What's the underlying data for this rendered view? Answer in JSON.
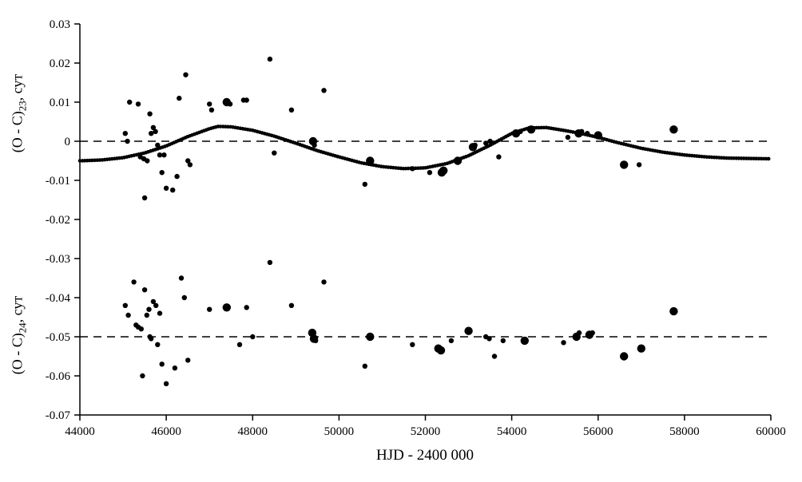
{
  "page": {
    "background": "#ffffff"
  },
  "chart_data": {
    "type": "scatter",
    "title": "",
    "xlabel": "HJD - 2400 000",
    "xlim": [
      44000,
      60000
    ],
    "ylim": [
      -0.07,
      0.03
    ],
    "grid": false,
    "point_color": "#000000",
    "axis_color": "#000000",
    "x_ticks": [
      44000,
      46000,
      48000,
      50000,
      52000,
      54000,
      56000,
      58000,
      60000
    ],
    "x_tick_labels": [
      "44000",
      "46000",
      "48000",
      "50000",
      "52000",
      "54000",
      "56000",
      "58000",
      "60000"
    ],
    "y_ticks": [
      0.03,
      0.02,
      0.01,
      0,
      -0.01,
      -0.02,
      -0.03,
      -0.04,
      -0.05,
      -0.06,
      -0.07
    ],
    "y_tick_labels": [
      "0.03",
      "0.02",
      "0.01",
      "0",
      "-0.01",
      "-0.02",
      "-0.03",
      "-0.04",
      "-0.05",
      "-0.06",
      "-0.07"
    ],
    "ylabel_top": {
      "prefix": "(O - C)",
      "sub": "23",
      "suffix": ", сут"
    },
    "ylabel_bottom": {
      "prefix": "(O - C)",
      "sub": "24",
      "suffix": ", сут"
    },
    "series": [
      {
        "name": "(O - C)23",
        "baseline": 0,
        "baseline_style": "dashed",
        "points": [
          [
            45050,
            0.002,
            "s"
          ],
          [
            45100,
            0.0,
            "s"
          ],
          [
            45150,
            0.01,
            "s"
          ],
          [
            45350,
            0.0095,
            "s"
          ],
          [
            45400,
            -0.004,
            "s"
          ],
          [
            45480,
            -0.0045,
            "s"
          ],
          [
            45500,
            -0.0145,
            "s"
          ],
          [
            45560,
            -0.005,
            "s"
          ],
          [
            45620,
            0.007,
            "s"
          ],
          [
            45650,
            0.002,
            "s"
          ],
          [
            45700,
            0.0035,
            "s"
          ],
          [
            45750,
            0.0025,
            "s"
          ],
          [
            45800,
            -0.001,
            "s"
          ],
          [
            45850,
            -0.0035,
            "s"
          ],
          [
            45900,
            -0.008,
            "s"
          ],
          [
            45950,
            -0.0035,
            "s"
          ],
          [
            46000,
            -0.012,
            "s"
          ],
          [
            46150,
            -0.0125,
            "s"
          ],
          [
            46250,
            -0.009,
            "s"
          ],
          [
            46300,
            0.011,
            "s"
          ],
          [
            46450,
            0.017,
            "s"
          ],
          [
            46500,
            -0.005,
            "s"
          ],
          [
            46550,
            -0.006,
            "s"
          ],
          [
            47000,
            0.0095,
            "s"
          ],
          [
            47050,
            0.008,
            "s"
          ],
          [
            47400,
            0.01,
            "l"
          ],
          [
            47480,
            0.0095,
            "s"
          ],
          [
            47790,
            0.0105,
            "s"
          ],
          [
            47860,
            0.0105,
            "s"
          ],
          [
            48400,
            0.021,
            "s"
          ],
          [
            48500,
            -0.003,
            "s"
          ],
          [
            48900,
            0.008,
            "s"
          ],
          [
            49400,
            0.0,
            "l"
          ],
          [
            49430,
            -0.001,
            "s"
          ],
          [
            49650,
            0.013,
            "s"
          ],
          [
            50600,
            -0.011,
            "s"
          ],
          [
            50720,
            -0.005,
            "l"
          ],
          [
            51700,
            -0.007,
            "s"
          ],
          [
            52100,
            -0.008,
            "s"
          ],
          [
            52380,
            -0.008,
            "l"
          ],
          [
            52420,
            -0.0075,
            "l"
          ],
          [
            52750,
            -0.005,
            "l"
          ],
          [
            53100,
            -0.0015,
            "l"
          ],
          [
            53150,
            -0.001,
            "s"
          ],
          [
            53400,
            -0.0005,
            "s"
          ],
          [
            53500,
            0.0,
            "s"
          ],
          [
            53700,
            -0.004,
            "s"
          ],
          [
            54100,
            0.002,
            "l"
          ],
          [
            54200,
            0.0025,
            "s"
          ],
          [
            54450,
            0.003,
            "l"
          ],
          [
            55300,
            0.001,
            "s"
          ],
          [
            55550,
            0.002,
            "l"
          ],
          [
            55620,
            0.0025,
            "s"
          ],
          [
            55750,
            0.002,
            "s"
          ],
          [
            56000,
            0.0015,
            "l"
          ],
          [
            56600,
            -0.006,
            "l"
          ],
          [
            56950,
            -0.006,
            "s"
          ],
          [
            57750,
            0.003,
            "l"
          ]
        ],
        "fit_curve": [
          [
            44000,
            -0.005
          ],
          [
            44500,
            -0.0048
          ],
          [
            45000,
            -0.0042
          ],
          [
            45500,
            -0.003
          ],
          [
            46000,
            -0.0012
          ],
          [
            46500,
            0.0012
          ],
          [
            47000,
            0.0032
          ],
          [
            47200,
            0.0038
          ],
          [
            47500,
            0.0037
          ],
          [
            48000,
            0.0028
          ],
          [
            48500,
            0.0013
          ],
          [
            49000,
            -0.0005
          ],
          [
            49500,
            -0.0024
          ],
          [
            50000,
            -0.004
          ],
          [
            50500,
            -0.0055
          ],
          [
            51000,
            -0.0065
          ],
          [
            51500,
            -0.007
          ],
          [
            52000,
            -0.0068
          ],
          [
            52500,
            -0.0057
          ],
          [
            53000,
            -0.0037
          ],
          [
            53500,
            -0.001
          ],
          [
            54000,
            0.002
          ],
          [
            54400,
            0.0034
          ],
          [
            54800,
            0.0035
          ],
          [
            55200,
            0.0028
          ],
          [
            55600,
            0.002
          ],
          [
            56000,
            0.001
          ],
          [
            56400,
            -0.0002
          ],
          [
            57000,
            -0.0018
          ],
          [
            57500,
            -0.0028
          ],
          [
            58000,
            -0.0035
          ],
          [
            58500,
            -0.004
          ],
          [
            59000,
            -0.0043
          ],
          [
            59500,
            -0.0044
          ],
          [
            60000,
            -0.0045
          ]
        ]
      },
      {
        "name": "(O - C)24",
        "baseline": -0.05,
        "baseline_style": "dashed",
        "points": [
          [
            45050,
            -0.042,
            "s"
          ],
          [
            45120,
            -0.0445,
            "s"
          ],
          [
            45250,
            -0.036,
            "s"
          ],
          [
            45300,
            -0.047,
            "s"
          ],
          [
            45350,
            -0.0475,
            "s"
          ],
          [
            45420,
            -0.048,
            "s"
          ],
          [
            45450,
            -0.06,
            "s"
          ],
          [
            45500,
            -0.038,
            "s"
          ],
          [
            45550,
            -0.0445,
            "s"
          ],
          [
            45600,
            -0.043,
            "s"
          ],
          [
            45620,
            -0.05,
            "s"
          ],
          [
            45650,
            -0.0505,
            "s"
          ],
          [
            45700,
            -0.041,
            "s"
          ],
          [
            45760,
            -0.042,
            "s"
          ],
          [
            45800,
            -0.052,
            "s"
          ],
          [
            45850,
            -0.044,
            "s"
          ],
          [
            45900,
            -0.057,
            "s"
          ],
          [
            46000,
            -0.062,
            "s"
          ],
          [
            46200,
            -0.058,
            "s"
          ],
          [
            46350,
            -0.035,
            "s"
          ],
          [
            46420,
            -0.04,
            "s"
          ],
          [
            46500,
            -0.056,
            "s"
          ],
          [
            47000,
            -0.043,
            "s"
          ],
          [
            47400,
            -0.0425,
            "l"
          ],
          [
            47700,
            -0.052,
            "s"
          ],
          [
            47860,
            -0.0425,
            "s"
          ],
          [
            48000,
            -0.05,
            "s"
          ],
          [
            48400,
            -0.031,
            "s"
          ],
          [
            48900,
            -0.042,
            "s"
          ],
          [
            49380,
            -0.049,
            "l"
          ],
          [
            49420,
            -0.0505,
            "l"
          ],
          [
            49460,
            -0.051,
            "s"
          ],
          [
            49650,
            -0.036,
            "s"
          ],
          [
            50600,
            -0.0575,
            "s"
          ],
          [
            50720,
            -0.05,
            "l"
          ],
          [
            51700,
            -0.052,
            "s"
          ],
          [
            52300,
            -0.053,
            "l"
          ],
          [
            52360,
            -0.0535,
            "l"
          ],
          [
            52600,
            -0.051,
            "s"
          ],
          [
            53000,
            -0.0485,
            "l"
          ],
          [
            53400,
            -0.05,
            "s"
          ],
          [
            53480,
            -0.0505,
            "s"
          ],
          [
            53600,
            -0.055,
            "s"
          ],
          [
            53800,
            -0.051,
            "s"
          ],
          [
            54300,
            -0.051,
            "l"
          ],
          [
            55200,
            -0.0515,
            "s"
          ],
          [
            55500,
            -0.05,
            "l"
          ],
          [
            55560,
            -0.049,
            "s"
          ],
          [
            55800,
            -0.0495,
            "l"
          ],
          [
            55870,
            -0.049,
            "s"
          ],
          [
            56600,
            -0.055,
            "l"
          ],
          [
            57000,
            -0.053,
            "l"
          ],
          [
            57750,
            -0.0435,
            "l"
          ]
        ]
      }
    ]
  }
}
